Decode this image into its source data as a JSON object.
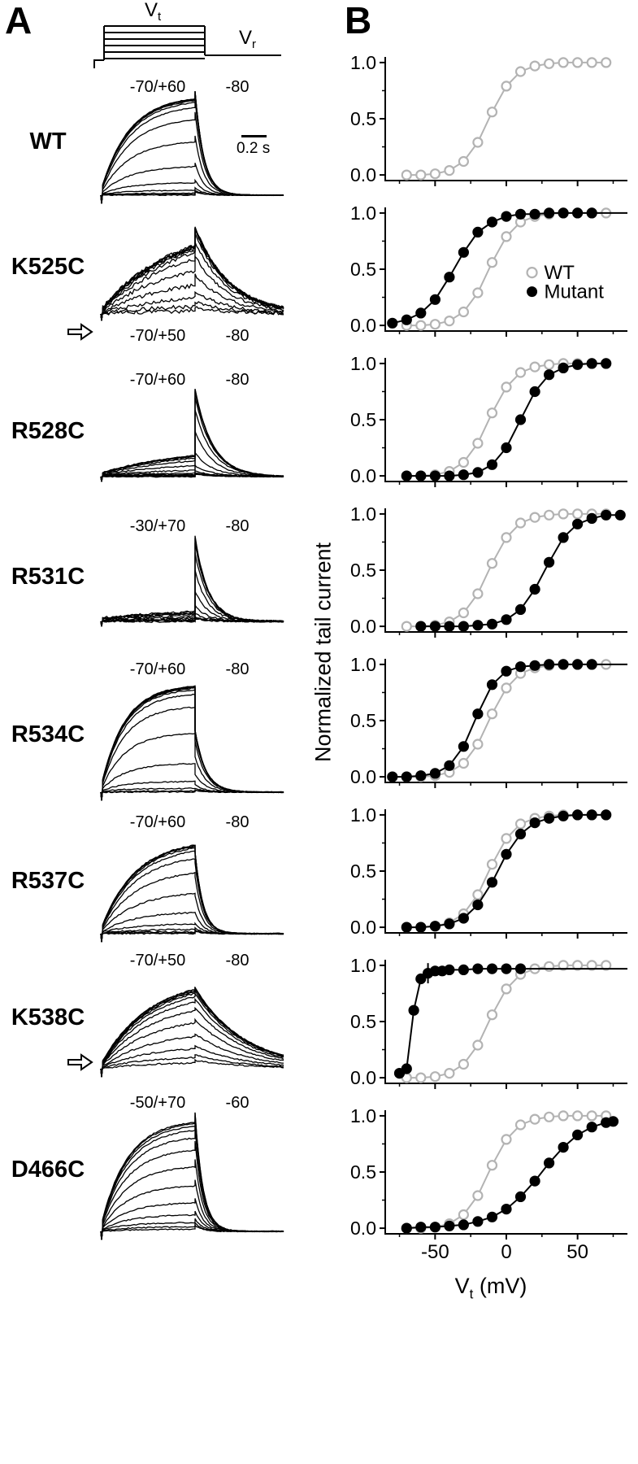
{
  "panelA": {
    "label": "A",
    "scale_bar": "0.2 s",
    "protocol": {
      "vt_main": "V",
      "vt_sub": "t",
      "vr_main": "V",
      "vr_sub": "r"
    },
    "rows": [
      {
        "name": "WT",
        "range": "-70/+60",
        "vr": "-80",
        "labels_at": "top",
        "trace": {
          "v0": -70,
          "v1": 60,
          "v12": -12,
          "k": 9,
          "riseScale": 0.92,
          "riseTau": 0.3,
          "tailScale": 1.0,
          "tailTau": 0.1,
          "noise": 0.5,
          "spike": 10
        }
      },
      {
        "name": "K525C",
        "range": "-70/+50",
        "vr": "-80",
        "labels_at": "bottom",
        "arrow": true,
        "trace": {
          "v0": -70,
          "v1": 50,
          "v12": -37,
          "k": 11,
          "riseScale": 0.85,
          "riseTau": 0.75,
          "tailScale": 0.85,
          "tailTau": 0.38,
          "noise": 2.4,
          "spike": 8
        }
      },
      {
        "name": "R528C",
        "range": "-70/+60",
        "vr": "-80",
        "labels_at": "top",
        "trace": {
          "v0": -70,
          "v1": 60,
          "v12": 10,
          "k": 9,
          "riseScale": 0.3,
          "riseTau": 0.9,
          "tailScale": 1.0,
          "tailTau": 0.2,
          "noise": 0.7,
          "spike": 6
        }
      },
      {
        "name": "R531C",
        "range": "-30/+70",
        "vr": "-80",
        "labels_at": "top",
        "trace": {
          "v0": -30,
          "v1": 70,
          "v12": 27,
          "k": 10,
          "riseScale": 0.13,
          "riseTau": 1.2,
          "tailScale": 1.0,
          "tailTau": 0.15,
          "noise": 1.3,
          "spike": 6
        }
      },
      {
        "name": "R534C",
        "range": "-70/+60",
        "vr": "-80",
        "labels_at": "top",
        "trace": {
          "v0": -70,
          "v1": 60,
          "v12": -22,
          "k": 8,
          "riseScale": 0.92,
          "riseTau": 0.25,
          "tailScale": 0.55,
          "tailTau": 0.12,
          "noise": 0.7,
          "spike": 10
        }
      },
      {
        "name": "R537C",
        "range": "-70/+60",
        "vr": "-80",
        "labels_at": "top",
        "trace": {
          "v0": -70,
          "v1": 60,
          "v12": -8,
          "k": 10,
          "riseScale": 0.88,
          "riseTau": 0.36,
          "tailScale": 0.8,
          "tailTau": 0.09,
          "noise": 0.8,
          "spike": 10
        }
      },
      {
        "name": "K538C",
        "range": "-70/+50",
        "vr": "-80",
        "labels_at": "top",
        "arrow": true,
        "trace": {
          "v0": -70,
          "v1": 50,
          "v12": -35,
          "k": 14,
          "riseScale": 0.88,
          "riseTau": 0.5,
          "tailScale": 0.82,
          "tailTau": 0.55,
          "noise": 0.9,
          "spike": 10
        }
      },
      {
        "name": "D466C",
        "range": "-50/+70",
        "vr": "-60",
        "labels_at": "top",
        "trace": {
          "v0": -50,
          "v1": 70,
          "v12": 5,
          "k": 14,
          "riseScale": 0.9,
          "riseTau": 0.28,
          "tailScale": 1.0,
          "tailTau": 0.09,
          "noise": 0.7,
          "spike": 10
        }
      }
    ]
  },
  "panelB": {
    "label": "B",
    "ylabel": "Normalized tail current",
    "xlabel_main": "V",
    "xlabel_sub": "t",
    "xlabel_unit": " (mV)",
    "legend": {
      "wt": "WT",
      "mutant": "Mutant"
    },
    "colors": {
      "wt": "#b3b3b3",
      "mutant": "#000000"
    }
  },
  "chart_data": [
    {
      "name": "WT",
      "type": "scatter",
      "xlim": [
        -85,
        85
      ],
      "ylim": [
        -0.05,
        1.05
      ],
      "xticks": [
        -50,
        0,
        50
      ],
      "yticks": [
        0,
        0.5,
        1
      ],
      "series": [
        {
          "label": "WT",
          "marker": "open",
          "x": [
            -70,
            -60,
            -50,
            -40,
            -30,
            -20,
            -10,
            0,
            10,
            20,
            30,
            40,
            50,
            60,
            70
          ],
          "y": [
            0.0,
            0.0,
            0.01,
            0.04,
            0.12,
            0.29,
            0.56,
            0.79,
            0.92,
            0.97,
            0.99,
            1.0,
            1.0,
            1.0,
            1.0
          ]
        }
      ]
    },
    {
      "name": "K525C",
      "type": "scatter",
      "legend": true,
      "xlim": [
        -85,
        85
      ],
      "ylim": [
        -0.05,
        1.05
      ],
      "xticks": [
        -50,
        0,
        50
      ],
      "yticks": [
        0,
        0.5,
        1
      ],
      "series": [
        {
          "label": "WT",
          "marker": "open",
          "x": [
            -70,
            -60,
            -50,
            -40,
            -30,
            -20,
            -10,
            0,
            10,
            20,
            30,
            40,
            50,
            60,
            70
          ],
          "y": [
            0.0,
            0.0,
            0.01,
            0.04,
            0.12,
            0.29,
            0.56,
            0.79,
            0.92,
            0.97,
            0.99,
            1.0,
            1.0,
            1.0,
            1.0
          ]
        },
        {
          "label": "Mutant",
          "marker": "filled",
          "extend": true,
          "x": [
            -80,
            -70,
            -60,
            -50,
            -40,
            -30,
            -20,
            -10,
            0,
            10,
            20,
            30,
            40,
            50,
            60
          ],
          "y": [
            0.02,
            0.05,
            0.11,
            0.23,
            0.43,
            0.65,
            0.83,
            0.92,
            0.97,
            0.99,
            0.99,
            1.0,
            1.0,
            1.0,
            1.0
          ]
        }
      ]
    },
    {
      "name": "R528C",
      "type": "scatter",
      "xlim": [
        -85,
        85
      ],
      "ylim": [
        -0.05,
        1.05
      ],
      "xticks": [
        -50,
        0,
        50
      ],
      "yticks": [
        0,
        0.5,
        1
      ],
      "series": [
        {
          "label": "WT",
          "marker": "open",
          "x": [
            -70,
            -60,
            -50,
            -40,
            -30,
            -20,
            -10,
            0,
            10,
            20,
            30,
            40,
            50,
            60,
            70
          ],
          "y": [
            0.0,
            0.0,
            0.01,
            0.04,
            0.12,
            0.29,
            0.56,
            0.79,
            0.92,
            0.97,
            0.99,
            1.0,
            1.0,
            1.0,
            1.0
          ]
        },
        {
          "label": "Mutant",
          "marker": "filled",
          "x": [
            -70,
            -60,
            -50,
            -40,
            -30,
            -20,
            -10,
            0,
            10,
            20,
            30,
            40,
            50,
            60,
            70
          ],
          "y": [
            0.0,
            0.0,
            0.0,
            0.0,
            0.01,
            0.03,
            0.1,
            0.25,
            0.5,
            0.75,
            0.9,
            0.96,
            0.99,
            1.0,
            1.0
          ]
        }
      ]
    },
    {
      "name": "R531C",
      "type": "scatter",
      "xlim": [
        -85,
        85
      ],
      "ylim": [
        -0.05,
        1.05
      ],
      "xticks": [
        -50,
        0,
        50
      ],
      "yticks": [
        0,
        0.5,
        1
      ],
      "series": [
        {
          "label": "WT",
          "marker": "open",
          "x": [
            -70,
            -60,
            -50,
            -40,
            -30,
            -20,
            -10,
            0,
            10,
            20,
            30,
            40,
            50,
            60,
            70
          ],
          "y": [
            0.0,
            0.0,
            0.01,
            0.04,
            0.12,
            0.29,
            0.56,
            0.79,
            0.92,
            0.97,
            0.99,
            1.0,
            1.0,
            1.0,
            1.0
          ]
        },
        {
          "label": "Mutant",
          "marker": "filled",
          "x": [
            -60,
            -50,
            -40,
            -30,
            -20,
            -10,
            0,
            10,
            20,
            30,
            40,
            50,
            60,
            70,
            80
          ],
          "y": [
            0.0,
            0.0,
            0.0,
            0.0,
            0.01,
            0.02,
            0.06,
            0.15,
            0.33,
            0.57,
            0.79,
            0.91,
            0.96,
            0.99,
            0.99
          ]
        }
      ]
    },
    {
      "name": "R534C",
      "type": "scatter",
      "xlim": [
        -85,
        85
      ],
      "ylim": [
        -0.05,
        1.05
      ],
      "xticks": [
        -50,
        0,
        50
      ],
      "yticks": [
        0,
        0.5,
        1
      ],
      "series": [
        {
          "label": "WT",
          "marker": "open",
          "x": [
            -70,
            -60,
            -50,
            -40,
            -30,
            -20,
            -10,
            0,
            10,
            20,
            30,
            40,
            50,
            60,
            70
          ],
          "y": [
            0.0,
            0.0,
            0.01,
            0.04,
            0.12,
            0.29,
            0.56,
            0.79,
            0.92,
            0.97,
            0.99,
            1.0,
            1.0,
            1.0,
            1.0
          ]
        },
        {
          "label": "Mutant",
          "marker": "filled",
          "extend": true,
          "x": [
            -80,
            -70,
            -60,
            -50,
            -40,
            -30,
            -20,
            -10,
            0,
            10,
            20,
            30,
            40,
            50,
            60
          ],
          "y": [
            0.0,
            0.0,
            0.01,
            0.03,
            0.1,
            0.27,
            0.56,
            0.82,
            0.94,
            0.98,
            0.99,
            1.0,
            1.0,
            1.0,
            1.0
          ]
        }
      ]
    },
    {
      "name": "R537C",
      "type": "scatter",
      "xlim": [
        -85,
        85
      ],
      "ylim": [
        -0.05,
        1.05
      ],
      "xticks": [
        -50,
        0,
        50
      ],
      "yticks": [
        0,
        0.5,
        1
      ],
      "series": [
        {
          "label": "WT",
          "marker": "open",
          "x": [
            -70,
            -60,
            -50,
            -40,
            -30,
            -20,
            -10,
            0,
            10,
            20,
            30,
            40,
            50,
            60,
            70
          ],
          "y": [
            0.0,
            0.0,
            0.01,
            0.04,
            0.12,
            0.29,
            0.56,
            0.79,
            0.92,
            0.97,
            0.99,
            1.0,
            1.0,
            1.0,
            1.0
          ]
        },
        {
          "label": "Mutant",
          "marker": "filled",
          "x": [
            -70,
            -60,
            -50,
            -40,
            -30,
            -20,
            -10,
            0,
            10,
            20,
            30,
            40,
            50,
            60,
            70
          ],
          "y": [
            0.0,
            0.0,
            0.01,
            0.03,
            0.08,
            0.2,
            0.4,
            0.65,
            0.83,
            0.93,
            0.97,
            0.99,
            1.0,
            1.0,
            1.0
          ]
        }
      ]
    },
    {
      "name": "K538C",
      "type": "scatter",
      "xlim": [
        -85,
        85
      ],
      "ylim": [
        -0.05,
        1.05
      ],
      "xticks": [
        -50,
        0,
        50
      ],
      "yticks": [
        0,
        0.5,
        1
      ],
      "error_bars": [
        {
          "x": -55,
          "y": 0.93,
          "e": 0.09
        }
      ],
      "series": [
        {
          "label": "WT",
          "marker": "open",
          "x": [
            -70,
            -60,
            -50,
            -40,
            -30,
            -20,
            -10,
            0,
            10,
            20,
            30,
            40,
            50,
            60,
            70
          ],
          "y": [
            0.0,
            0.0,
            0.01,
            0.04,
            0.12,
            0.29,
            0.56,
            0.79,
            0.92,
            0.97,
            0.99,
            1.0,
            1.0,
            1.0,
            1.0
          ]
        },
        {
          "label": "Mutant",
          "marker": "filled",
          "extend": true,
          "x": [
            -75,
            -70,
            -65,
            -60,
            -55,
            -50,
            -45,
            -40,
            -30,
            -20,
            -10,
            0,
            10
          ],
          "y": [
            0.04,
            0.08,
            0.6,
            0.88,
            0.93,
            0.95,
            0.95,
            0.96,
            0.96,
            0.97,
            0.97,
            0.97,
            0.97
          ]
        }
      ]
    },
    {
      "name": "D466C",
      "type": "scatter",
      "xlim": [
        -85,
        85
      ],
      "ylim": [
        -0.05,
        1.05
      ],
      "xticks": [
        -50,
        0,
        50
      ],
      "yticks": [
        0,
        0.5,
        1
      ],
      "series": [
        {
          "label": "WT",
          "marker": "open",
          "x": [
            -70,
            -60,
            -50,
            -40,
            -30,
            -20,
            -10,
            0,
            10,
            20,
            30,
            40,
            50,
            60,
            70
          ],
          "y": [
            0.0,
            0.0,
            0.01,
            0.04,
            0.12,
            0.29,
            0.56,
            0.79,
            0.92,
            0.97,
            0.99,
            1.0,
            1.0,
            1.0,
            1.0
          ]
        },
        {
          "label": "Mutant",
          "marker": "filled",
          "x": [
            -70,
            -60,
            -50,
            -40,
            -30,
            -20,
            -10,
            0,
            10,
            20,
            30,
            40,
            50,
            60,
            70,
            75
          ],
          "y": [
            0.0,
            0.01,
            0.01,
            0.02,
            0.03,
            0.06,
            0.1,
            0.17,
            0.28,
            0.42,
            0.58,
            0.72,
            0.83,
            0.9,
            0.94,
            0.95
          ]
        }
      ]
    }
  ]
}
